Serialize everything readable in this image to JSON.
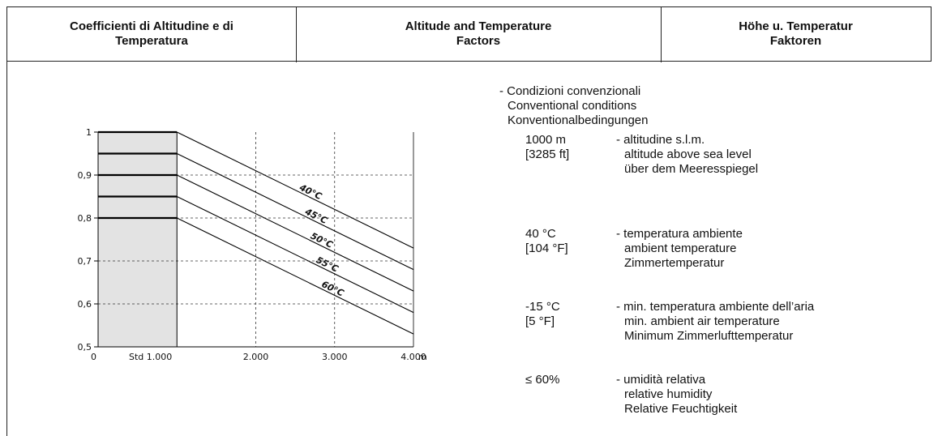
{
  "header": {
    "col1": [
      "Coefficienti di Altitudine e di",
      "Temperatura"
    ],
    "col2": [
      "Altitude and Temperature",
      "Factors"
    ],
    "col3": [
      "Höhe u. Temperatur",
      "Faktoren"
    ]
  },
  "conditions": {
    "intro": [
      "- Condizioni convenzionali",
      "Conventional conditions",
      "Konventionalbedingungen"
    ],
    "items": [
      {
        "value": [
          "1000 m",
          "[3285 ft]"
        ],
        "desc": [
          "- altitudine s.l.m.",
          "altitude above sea level",
          "über dem Meeresspiegel"
        ]
      },
      {
        "value": [
          "40 °C",
          "[104 °F]"
        ],
        "desc": [
          "- temperatura ambiente",
          "ambient temperature",
          "Zimmertemperatur"
        ]
      },
      {
        "value": [
          "-15 °C",
          "[5 °F]"
        ],
        "desc": [
          "- min. temperatura ambiente dell’aria",
          "min. ambient air temperature",
          "Minimum Zimmerlufttemperatur"
        ]
      },
      {
        "value": [
          "≤ 60%",
          ""
        ],
        "desc": [
          "- umidità relativa",
          "relative humidity",
          "Relative Feuchtigkeit"
        ]
      }
    ]
  },
  "chart_data": {
    "type": "line",
    "title": "",
    "xlabel": "m",
    "ylabel": "",
    "xlim": [
      0,
      4000
    ],
    "ylim": [
      0.5,
      1
    ],
    "x_ticks": [
      {
        "value": 0,
        "label": "0"
      },
      {
        "value": 1000,
        "label": "Std  1.000"
      },
      {
        "value": 2000,
        "label": "2.000"
      },
      {
        "value": 3000,
        "label": "3.000"
      },
      {
        "value": 4000,
        "label": "4.000"
      }
    ],
    "y_ticks": [
      {
        "value": 1,
        "label": "1"
      },
      {
        "value": 0.9,
        "label": "0,9"
      },
      {
        "value": 0.8,
        "label": "0,8"
      },
      {
        "value": 0.7,
        "label": "0,7"
      },
      {
        "value": 0.6,
        "label": "0,6"
      },
      {
        "value": 0.5,
        "label": "0,5"
      }
    ],
    "std_region": [
      0,
      1000
    ],
    "series": [
      {
        "name": "40°C",
        "points": [
          [
            0,
            1.0
          ],
          [
            1000,
            1.0
          ],
          [
            4000,
            0.73
          ]
        ]
      },
      {
        "name": "45°C",
        "points": [
          [
            0,
            0.95
          ],
          [
            1000,
            0.95
          ],
          [
            4000,
            0.68
          ]
        ]
      },
      {
        "name": "50°C",
        "points": [
          [
            0,
            0.9
          ],
          [
            1000,
            0.9
          ],
          [
            4000,
            0.63
          ]
        ]
      },
      {
        "name": "55°C",
        "points": [
          [
            0,
            0.85
          ],
          [
            1000,
            0.85
          ],
          [
            4000,
            0.58
          ]
        ]
      },
      {
        "name": "60°C",
        "points": [
          [
            0,
            0.8
          ],
          [
            1000,
            0.8
          ],
          [
            4000,
            0.53
          ]
        ]
      }
    ],
    "grid": true,
    "colors": {
      "std_fill": "#e3e3e3",
      "line": "#000000",
      "grid": "#333333"
    }
  }
}
